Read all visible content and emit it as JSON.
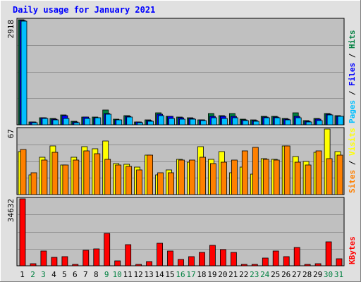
{
  "chart_data": [
    {
      "type": "bar",
      "title": "Daily usage for January 2021",
      "categories": [
        "1",
        "2",
        "3",
        "4",
        "5",
        "6",
        "7",
        "8",
        "9",
        "10",
        "11",
        "12",
        "13",
        "14",
        "15",
        "16",
        "17",
        "18",
        "19",
        "20",
        "21",
        "22",
        "23",
        "24",
        "25",
        "26",
        "27",
        "28",
        "29",
        "30",
        "31"
      ],
      "weekend_categories": [
        "2",
        "3",
        "9",
        "10",
        "16",
        "17",
        "23",
        "24",
        "30",
        "31"
      ],
      "ymax_label": "2918",
      "ylim": [
        0,
        2918
      ],
      "grid": true,
      "legend": {
        "parts": [
          "Pages",
          "Files",
          "Hits"
        ],
        "separator": " / ",
        "placement": "right-vertical"
      },
      "series": [
        {
          "name": "Hits",
          "color": "#008040",
          "values": [
            2918,
            75,
            200,
            170,
            265,
            90,
            220,
            225,
            420,
            150,
            250,
            80,
            130,
            330,
            240,
            220,
            190,
            140,
            310,
            250,
            310,
            160,
            130,
            230,
            230,
            170,
            330,
            110,
            170,
            320,
            250
          ]
        },
        {
          "name": "Files",
          "color": "#0000ff",
          "values": [
            2890,
            70,
            190,
            160,
            250,
            80,
            210,
            200,
            310,
            140,
            240,
            70,
            120,
            300,
            230,
            200,
            180,
            130,
            240,
            240,
            240,
            140,
            120,
            220,
            220,
            160,
            240,
            100,
            160,
            300,
            240
          ]
        },
        {
          "name": "Pages",
          "color": "#00bfff",
          "values": [
            2880,
            65,
            170,
            130,
            170,
            60,
            170,
            190,
            300,
            130,
            210,
            60,
            100,
            250,
            180,
            150,
            150,
            120,
            200,
            180,
            200,
            120,
            100,
            200,
            190,
            130,
            200,
            80,
            120,
            280,
            230
          ]
        }
      ]
    },
    {
      "type": "bar",
      "ymax_label": "67",
      "ylim": [
        0,
        67
      ],
      "grid": true,
      "legend": {
        "parts": [
          "Sites",
          "Visits"
        ],
        "separator": " / ",
        "placement": "right-vertical"
      },
      "series": [
        {
          "name": "Visits",
          "color": "#ffff00",
          "values": [
            44,
            20,
            38,
            50,
            30,
            38,
            49,
            47,
            55,
            32,
            31,
            28,
            40,
            20,
            25,
            36,
            33,
            49,
            36,
            44,
            22,
            28,
            21,
            37,
            36,
            50,
            39,
            34,
            43,
            67,
            44
          ]
        },
        {
          "name": "Sites",
          "color": "#ff8000",
          "values": [
            46,
            22,
            35,
            43,
            30,
            35,
            45,
            42,
            36,
            30,
            29,
            25,
            40,
            22,
            22,
            35,
            35,
            38,
            32,
            33,
            35,
            45,
            48,
            36,
            35,
            50,
            33,
            30,
            45,
            37,
            40
          ]
        }
      ]
    },
    {
      "type": "bar",
      "ymax_label": "34632",
      "ylim": [
        0,
        34632
      ],
      "grid": true,
      "legend": {
        "parts": [
          "KBytes"
        ],
        "separator": "",
        "placement": "right-vertical"
      },
      "series": [
        {
          "name": "KBytes",
          "color": "#ff0000",
          "values": [
            34632,
            1200,
            7600,
            4300,
            4800,
            800,
            8000,
            8900,
            16700,
            2500,
            10800,
            900,
            2200,
            11700,
            7600,
            3100,
            4800,
            7100,
            10400,
            8500,
            6800,
            800,
            900,
            3900,
            7500,
            4800,
            9300,
            600,
            1100,
            12400,
            3500
          ]
        }
      ]
    }
  ]
}
